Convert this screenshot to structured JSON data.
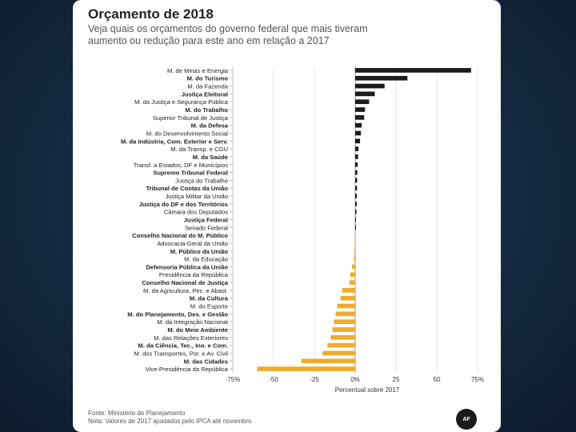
{
  "chart_data": {
    "type": "bar",
    "orientation": "horizontal",
    "title": "Orçamento de 2018",
    "subtitle_lines": [
      "Veja quais os orçamentos do governo federal que mais tiveram",
      "aumento ou redução para este ano em relação a 2017"
    ],
    "xlabel": "Percentual sobre 2017",
    "xlim": [
      -75,
      75
    ],
    "xticks": [
      -75,
      -50,
      -25,
      0,
      25,
      50,
      75
    ],
    "xtick_labels": [
      "-75%",
      "-50",
      "-25",
      "0%",
      "25",
      "50",
      "75%"
    ],
    "grid": true,
    "positive_color": "#1c1c1c",
    "negative_color": "#eeab31",
    "categories": [
      "M. de Minas e Energia",
      "M. do Turismo",
      "M. da Fazenda",
      "Justiça Eleitoral",
      "M. da Justiça e Segurança Pública",
      "M. do Trabalho",
      "Superior Tribunal de Justiça",
      "M. da Defesa",
      "M. do Desenvolvimento Social",
      "M. da Indústria, Com. Exterior e Serv.",
      "M. da Transp. e CGU",
      "M. da Saúde",
      "Transf. a Estados, DF e Municípios",
      "Supremo Tribunal Federal",
      "Justiça do Trabalho",
      "Tribunal de Contas da União",
      "Justiça Militar da União",
      "Justiça do DF e dos Territórios",
      "Câmara dos Deputados",
      "Justiça Federal",
      "Senado Federal",
      "Conselho Nacional do M. Público",
      "Advocacia-Geral da União",
      "M. Público da União",
      "M. da Educação",
      "Defensoria Pública da União",
      "Presidência da República",
      "Conselho Nacional de Justiça",
      "M. da Agricultura, Pec. e Abast.",
      "M. da Cultura",
      "M. do Esporte",
      "M. do Planejamento, Des. e Gestão",
      "M. da Integração Nacional",
      "M. do Meio Ambiente",
      "M. das Relações Exteriores",
      "M. da Ciência, Tec., Ino. e Com.",
      "M. dos Transportes, Por. e Av. Civil",
      "M. das Cidades",
      "Vice-Presidência da República"
    ],
    "values": [
      71,
      32,
      18,
      12,
      8.5,
      6,
      5.5,
      4,
      3.5,
      3,
      2,
      1.8,
      1.5,
      1.3,
      1.2,
      1.1,
      1,
      0.9,
      0.8,
      0.5,
      0.2,
      0,
      -0.3,
      -0.5,
      -0.8,
      -2,
      -3,
      -3.5,
      -8,
      -9,
      -11,
      -12,
      -13,
      -14,
      -15,
      -17,
      -20,
      -33,
      -60
    ]
  },
  "footer": {
    "source": "Fonte: Ministério do Planejamento",
    "note": "Nota: Valores de 2017 ajustados pelo IPCA até novembro",
    "badge": "AF"
  }
}
